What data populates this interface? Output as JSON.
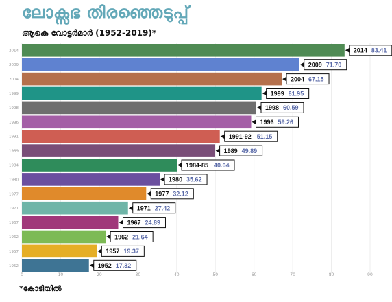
{
  "title": "ലോക്സഭ തിരഞ്ഞെടുപ്പ്",
  "subtitle": "ആകെ വോട്ടർമാർ (1952-2019)*",
  "footnote": "*കോടിയിൽ",
  "colors": {
    "label_value": "#5a6aa8",
    "axis_text": "#9a9a9a",
    "grid": "#ececec"
  },
  "chart_data": {
    "type": "bar",
    "orientation": "horizontal",
    "title": "ലോക്സഭ തിരഞ്ഞെടുപ്പ്",
    "subtitle": "ആകെ വോട്ടർമാർ (1952-2019)*",
    "xlabel": "",
    "ylabel": "",
    "xlim": [
      0,
      90
    ],
    "xticks": [
      0,
      10,
      20,
      30,
      40,
      50,
      60,
      70,
      80,
      90
    ],
    "grid": true,
    "categories": [
      "2014",
      "2009",
      "2004",
      "1999",
      "1998",
      "1996",
      "1991",
      "1989",
      "1984",
      "1980",
      "1977",
      "1971",
      "1967",
      "1962",
      "1957",
      "1952"
    ],
    "tick_labels": [
      "2014",
      "2009",
      "2004",
      "1999",
      "1998",
      "1996",
      "1991",
      "1989",
      "1984",
      "1980",
      "1977",
      "1971",
      "1967",
      "1962",
      "1957",
      "1952"
    ],
    "data_labels": [
      "2014",
      "2009",
      "2004",
      "1999",
      "1998",
      "1996",
      "1991-92",
      "1989",
      "1984-85",
      "1980",
      "1977",
      "1971",
      "1967",
      "1962",
      "1957",
      "1952"
    ],
    "values": [
      83.41,
      71.7,
      67.15,
      61.95,
      60.59,
      59.26,
      51.15,
      49.89,
      40.04,
      35.62,
      32.12,
      27.42,
      24.89,
      21.64,
      19.37,
      17.32
    ],
    "value_labels": [
      "83.41",
      "71.70",
      "67.15",
      "61.95",
      "60.59",
      "59.26",
      "51.15",
      "49.89",
      "40.04",
      "35.62",
      "32.12",
      "27.42",
      "24.89",
      "21.64",
      "19.37",
      "17.32"
    ],
    "bar_colors": [
      "#4f8b54",
      "#5f82d0",
      "#b5704c",
      "#1f9487",
      "#6e6e6e",
      "#a45ea6",
      "#cf5e53",
      "#7a4e78",
      "#2f8c5b",
      "#6b4f9f",
      "#e08a2b",
      "#6fb5a8",
      "#a0387a",
      "#7dba55",
      "#e5ae25",
      "#3e7494"
    ]
  }
}
